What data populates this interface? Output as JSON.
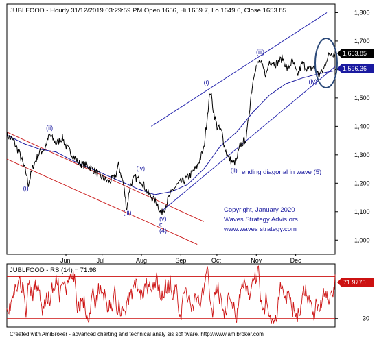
{
  "chart_data": [
    {
      "type": "line",
      "header": "JUBLFOOD - Hourly 31/12/2019 03:29:59 PM Open 1656, Hi 1659.7, Lo 1649.6, Close 1653.85",
      "ohlc": {
        "open": 1656,
        "high": 1659.7,
        "low": 1649.6,
        "close": 1653.85
      },
      "y_ticks": [
        1000,
        1100,
        1200,
        1300,
        1400,
        1500,
        1600,
        1700,
        1800
      ],
      "y_tick_labels": [
        "1,000",
        "1,100",
        "1,200",
        "1,300",
        "1,400",
        "1,500",
        "1,600",
        "1,700",
        "1,800"
      ],
      "ylim": [
        950,
        1830
      ],
      "x_tick_labels": [
        "Jun",
        "Jul",
        "Aug",
        "Sep",
        "Oct",
        "Nov",
        "Dec"
      ],
      "x_tick_positions": [
        0.18,
        0.29,
        0.41,
        0.53,
        0.64,
        0.76,
        0.88
      ],
      "price_keypoints": [
        [
          0.0,
          1370
        ],
        [
          0.02,
          1350
        ],
        [
          0.04,
          1300
        ],
        [
          0.06,
          1230
        ],
        [
          0.065,
          1195
        ],
        [
          0.08,
          1260
        ],
        [
          0.1,
          1310
        ],
        [
          0.115,
          1320
        ],
        [
          0.13,
          1370
        ],
        [
          0.15,
          1340
        ],
        [
          0.17,
          1360
        ],
        [
          0.18,
          1330
        ],
        [
          0.2,
          1300
        ],
        [
          0.22,
          1270
        ],
        [
          0.25,
          1260
        ],
        [
          0.27,
          1240
        ],
        [
          0.29,
          1220
        ],
        [
          0.31,
          1205
        ],
        [
          0.33,
          1220
        ],
        [
          0.34,
          1265
        ],
        [
          0.355,
          1200
        ],
        [
          0.365,
          1110
        ],
        [
          0.375,
          1190
        ],
        [
          0.39,
          1220
        ],
        [
          0.41,
          1210
        ],
        [
          0.43,
          1165
        ],
        [
          0.45,
          1140
        ],
        [
          0.46,
          1125
        ],
        [
          0.47,
          1090
        ],
        [
          0.48,
          1110
        ],
        [
          0.49,
          1140
        ],
        [
          0.505,
          1175
        ],
        [
          0.52,
          1195
        ],
        [
          0.54,
          1210
        ],
        [
          0.56,
          1230
        ],
        [
          0.58,
          1260
        ],
        [
          0.6,
          1320
        ],
        [
          0.61,
          1430
        ],
        [
          0.62,
          1530
        ],
        [
          0.63,
          1450
        ],
        [
          0.64,
          1400
        ],
        [
          0.655,
          1380
        ],
        [
          0.665,
          1320
        ],
        [
          0.675,
          1290
        ],
        [
          0.69,
          1270
        ],
        [
          0.7,
          1280
        ],
        [
          0.71,
          1330
        ],
        [
          0.73,
          1360
        ],
        [
          0.745,
          1520
        ],
        [
          0.755,
          1600
        ],
        [
          0.77,
          1630
        ],
        [
          0.79,
          1580
        ],
        [
          0.8,
          1630
        ],
        [
          0.82,
          1620
        ],
        [
          0.84,
          1640
        ],
        [
          0.855,
          1600
        ],
        [
          0.87,
          1630
        ],
        [
          0.885,
          1580
        ],
        [
          0.9,
          1620
        ],
        [
          0.92,
          1600
        ],
        [
          0.935,
          1610
        ],
        [
          0.95,
          1580
        ],
        [
          0.965,
          1600
        ],
        [
          0.975,
          1640
        ],
        [
          0.99,
          1660
        ],
        [
          1.0,
          1654
        ]
      ],
      "ma_label": "1,596.36",
      "ma_value": 1596.36,
      "ma_keypoints": [
        [
          0.0,
          1370
        ],
        [
          0.05,
          1340
        ],
        [
          0.1,
          1320
        ],
        [
          0.15,
          1310
        ],
        [
          0.2,
          1280
        ],
        [
          0.25,
          1255
        ],
        [
          0.3,
          1230
        ],
        [
          0.35,
          1205
        ],
        [
          0.4,
          1180
        ],
        [
          0.45,
          1160
        ],
        [
          0.5,
          1170
        ],
        [
          0.55,
          1195
        ],
        [
          0.6,
          1250
        ],
        [
          0.65,
          1330
        ],
        [
          0.7,
          1380
        ],
        [
          0.75,
          1450
        ],
        [
          0.8,
          1510
        ],
        [
          0.85,
          1550
        ],
        [
          0.9,
          1570
        ],
        [
          0.95,
          1585
        ],
        [
          1.0,
          1596
        ]
      ],
      "last_label": "1,653.85",
      "last_value": 1653.85,
      "wave_labels": [
        {
          "text": "(i)",
          "x": 0.06,
          "y": 1175
        },
        {
          "text": "(ii)",
          "x": 0.13,
          "y": 1388
        },
        {
          "text": "(iii)",
          "x": 0.365,
          "y": 1090
        },
        {
          "text": "(iv)",
          "x": 0.405,
          "y": 1245
        },
        {
          "text": "(v)",
          "x": 0.475,
          "y": 1068
        },
        {
          "text": "c",
          "x": 0.475,
          "y": 1048
        },
        {
          "text": "(4)",
          "x": 0.475,
          "y": 1026
        },
        {
          "text": "(i)",
          "x": 0.61,
          "y": 1548
        },
        {
          "text": "(ii)",
          "x": 0.692,
          "y": 1238
        },
        {
          "text": "(iii)",
          "x": 0.77,
          "y": 1654
        },
        {
          "text": "(iv)",
          "x": 0.93,
          "y": 1550
        }
      ],
      "annotations": [
        "ending diagonal in wave (5)",
        "Copyright, January 2020",
        "Waves Strategy Advis ors",
        "www.waves strategy.com"
      ],
      "channels": [
        {
          "color": "#cc2222",
          "from": [
            0.0,
            1380
          ],
          "to": [
            0.6,
            1065
          ]
        },
        {
          "color": "#cc2222",
          "from": [
            0.0,
            1285
          ],
          "to": [
            0.58,
            985
          ]
        },
        {
          "color": "#2a2ab0",
          "from": [
            0.44,
            1400
          ],
          "to": [
            0.975,
            1800
          ]
        },
        {
          "color": "#2a2ab0",
          "from": [
            0.47,
            1100
          ],
          "to": [
            1.0,
            1610
          ]
        }
      ],
      "colors": {
        "price": "#000000",
        "ma": "#1a1aa0",
        "channel_red": "#cc2222",
        "channel_blue": "#2a2ab0",
        "last_box": "#000000",
        "ma_box": "#1a1aa0"
      }
    },
    {
      "type": "line",
      "header": "JUBLFOOD - RSI(14) = 71.98",
      "series_name": "RSI(14)",
      "last_value": 71.98,
      "last_label": "71.9775",
      "y_ticks": [
        30
      ],
      "y_tick_labels": [
        "30"
      ],
      "ylim": [
        22,
        82
      ],
      "reference_lines": [
        70,
        30
      ],
      "color": "#cc1111"
    }
  ],
  "footer": "Created with AmiBroker - advanced charting and technical analy sis sof tware. http://www.amibroker.com"
}
